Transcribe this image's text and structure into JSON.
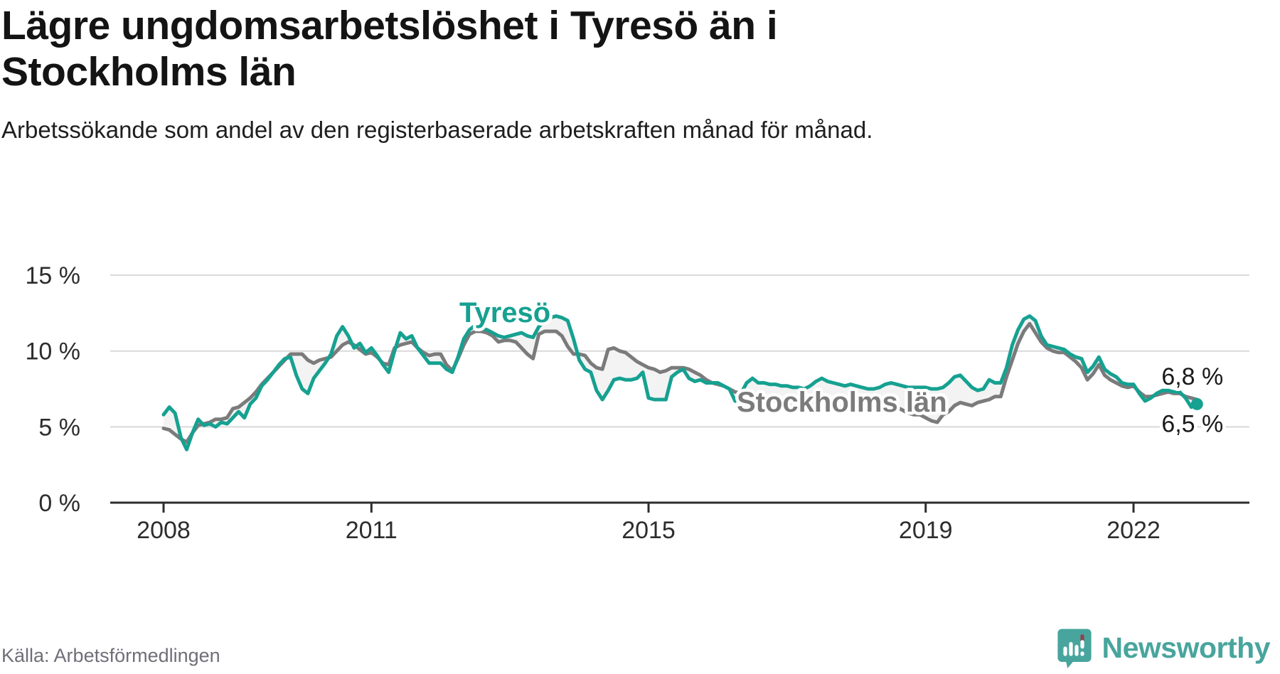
{
  "header": {
    "title": "Lägre ungdomsarbetslöshet i Tyresö än i Stockholms län",
    "subtitle": "Arbetssökande som andel av den registerbaserade arbetskraften månad för månad."
  },
  "footer": {
    "source": "Källa: Arbetsförmedlingen",
    "brand": "Newsworthy"
  },
  "colors": {
    "tyreso": "#16a191",
    "stockholm": "#7b7b7b",
    "fill_between": "#f3f3f3",
    "grid": "#d9d9d9",
    "axis": "#2d2d2d",
    "axis_text": "#2d2d2d",
    "end_label_text": "#1a1a1a",
    "title_text": "#141414",
    "source_text": "#6f6f78",
    "brand_teal": "#48a59d",
    "brand_accent_red": "#8d4250"
  },
  "chart_data": {
    "type": "line",
    "title": "Lägre ungdomsarbetslöshet i Tyresö än i Stockholms län",
    "subtitle": "Arbetssökande som andel av den registerbaserade arbetskraften månad för månad.",
    "unit": "%",
    "frequency": "monthly",
    "x_start": "2008-01",
    "x_end": "2022-12",
    "ylim": [
      0,
      16.5
    ],
    "grid": "horizontal",
    "legend": "inline-labels",
    "yticks": [
      {
        "value": 0,
        "label": "0 %"
      },
      {
        "value": 5,
        "label": "5 %"
      },
      {
        "value": 10,
        "label": "10 %"
      },
      {
        "value": 15,
        "label": "15 %"
      }
    ],
    "xticks": [
      {
        "year": 2008,
        "label": "2008"
      },
      {
        "year": 2011,
        "label": "2011"
      },
      {
        "year": 2015,
        "label": "2015"
      },
      {
        "year": 2019,
        "label": "2019"
      },
      {
        "year": 2022,
        "label": "2022"
      }
    ],
    "series": [
      {
        "name": "Tyresö",
        "color": "#16a191",
        "end_label": "6,5 %",
        "end_value": 6.5,
        "values": [
          5.8,
          6.3,
          5.9,
          4.3,
          3.5,
          4.6,
          5.5,
          5.1,
          5.2,
          5.0,
          5.3,
          5.2,
          5.6,
          6.0,
          5.6,
          6.5,
          6.9,
          7.7,
          8.1,
          8.6,
          9.1,
          9.5,
          9.6,
          8.4,
          7.5,
          7.2,
          8.2,
          8.7,
          9.2,
          9.8,
          11.0,
          11.6,
          11.0,
          10.2,
          10.5,
          9.9,
          10.2,
          9.7,
          9.1,
          8.6,
          10.0,
          11.2,
          10.8,
          11.0,
          10.2,
          9.7,
          9.2,
          9.2,
          9.2,
          8.8,
          8.6,
          9.6,
          10.8,
          11.4,
          11.7,
          11.5,
          11.4,
          11.2,
          11.0,
          10.9,
          11.0,
          11.1,
          11.2,
          11.0,
          10.9,
          11.6,
          12.0,
          12.2,
          12.3,
          12.2,
          12.0,
          10.8,
          9.4,
          8.8,
          8.6,
          7.4,
          6.8,
          7.4,
          8.1,
          8.2,
          8.1,
          8.1,
          8.2,
          8.6,
          6.9,
          6.8,
          6.8,
          6.8,
          8.3,
          8.6,
          8.8,
          8.2,
          8.0,
          8.1,
          7.9,
          7.9,
          7.9,
          7.7,
          7.5,
          6.7,
          7.2,
          7.9,
          8.2,
          7.9,
          7.9,
          7.8,
          7.8,
          7.7,
          7.7,
          7.6,
          7.6,
          7.5,
          7.7,
          8.0,
          8.2,
          8.0,
          7.9,
          7.8,
          7.7,
          7.8,
          7.7,
          7.6,
          7.5,
          7.5,
          7.6,
          7.8,
          7.9,
          7.8,
          7.7,
          7.6,
          7.6,
          7.6,
          7.6,
          7.5,
          7.5,
          7.6,
          7.9,
          8.3,
          8.4,
          8.0,
          7.6,
          7.4,
          7.5,
          8.1,
          7.9,
          7.9,
          8.9,
          10.4,
          11.4,
          12.1,
          12.3,
          12.0,
          11.0,
          10.4,
          10.3,
          10.2,
          10.1,
          9.8,
          9.6,
          9.5,
          8.6,
          9.0,
          9.6,
          8.8,
          8.5,
          8.3,
          7.9,
          7.8,
          7.8,
          7.2,
          6.7,
          6.9,
          7.2,
          7.4,
          7.4,
          7.3,
          7.3,
          6.9,
          6.3,
          6.5
        ]
      },
      {
        "name": "Stockholms län",
        "color": "#7b7b7b",
        "end_label": "6,8 %",
        "end_value": 6.8,
        "values": [
          4.9,
          4.8,
          4.5,
          4.2,
          4.0,
          4.6,
          5.1,
          5.2,
          5.3,
          5.5,
          5.5,
          5.6,
          6.2,
          6.3,
          6.6,
          6.9,
          7.3,
          7.8,
          8.2,
          8.6,
          9.0,
          9.4,
          9.8,
          9.8,
          9.8,
          9.4,
          9.2,
          9.4,
          9.5,
          9.6,
          10.0,
          10.4,
          10.6,
          10.4,
          10.1,
          9.8,
          9.9,
          9.6,
          9.2,
          9.1,
          10.2,
          10.4,
          10.5,
          10.6,
          10.2,
          9.9,
          9.7,
          9.8,
          9.8,
          9.1,
          8.7,
          9.5,
          10.4,
          11.1,
          11.3,
          11.3,
          11.2,
          11.0,
          10.6,
          10.7,
          10.7,
          10.6,
          10.2,
          9.8,
          9.5,
          11.1,
          11.3,
          11.3,
          11.3,
          11.0,
          10.3,
          9.8,
          9.8,
          9.7,
          9.2,
          8.9,
          8.8,
          10.1,
          10.2,
          10.0,
          9.9,
          9.6,
          9.3,
          9.1,
          8.9,
          8.8,
          8.6,
          8.7,
          8.9,
          8.9,
          8.9,
          8.8,
          8.6,
          8.4,
          8.1,
          7.9,
          7.8,
          7.7,
          7.5,
          7.3,
          7.2,
          7.0,
          6.9,
          6.8,
          6.8,
          6.7,
          6.7,
          6.6,
          6.6,
          6.5,
          6.4,
          6.3,
          6.4,
          6.7,
          6.8,
          6.6,
          6.4,
          6.3,
          6.3,
          6.3,
          6.3,
          6.2,
          6.1,
          6.0,
          6.1,
          6.4,
          6.5,
          6.3,
          6.1,
          5.9,
          5.8,
          5.8,
          5.6,
          5.4,
          5.3,
          5.8,
          6.0,
          6.4,
          6.6,
          6.5,
          6.4,
          6.6,
          6.7,
          6.8,
          7.0,
          7.0,
          8.3,
          9.4,
          10.5,
          11.3,
          11.8,
          11.2,
          10.6,
          10.2,
          10.0,
          9.9,
          9.9,
          9.6,
          9.3,
          8.9,
          8.1,
          8.5,
          9.1,
          8.4,
          8.1,
          7.9,
          7.7,
          7.6,
          7.7,
          7.3,
          7.0,
          7.0,
          7.1,
          7.2,
          7.3,
          7.2,
          7.2,
          7.0,
          6.9,
          6.8
        ]
      }
    ]
  }
}
